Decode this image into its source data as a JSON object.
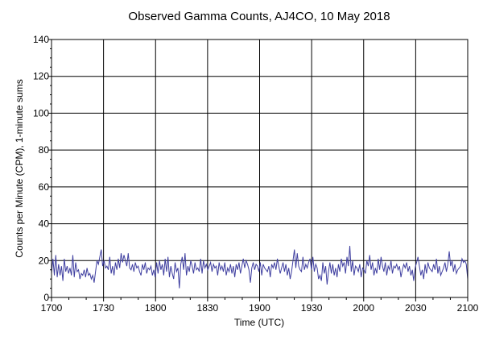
{
  "chart_data": {
    "type": "line",
    "title": "Observed Gamma Counts, AJ4CO, 10 May 2018",
    "xlabel": "Time (UTC)",
    "ylabel": "Counts per Minute (CPM), 1-minute sums",
    "x_tick_labels": [
      "1700",
      "1730",
      "1800",
      "1830",
      "1900",
      "1930",
      "2000",
      "2030",
      "2100"
    ],
    "y_ticks": [
      0,
      20,
      40,
      60,
      80,
      100,
      120,
      140
    ],
    "ylim": [
      0,
      140
    ],
    "xlim": [
      "17:00",
      "21:00"
    ],
    "grid": true,
    "series_color": "#3f3fa0",
    "series": [
      {
        "x_start": "17:00",
        "x_step_minutes": 1,
        "values": [
          13,
          21,
          12,
          23,
          11,
          18,
          12,
          17,
          9,
          21,
          14,
          17,
          13,
          16,
          12,
          23,
          11,
          19,
          14,
          15,
          10,
          13,
          12,
          15,
          11,
          16,
          12,
          13,
          10,
          12,
          8,
          14,
          20,
          18,
          22,
          26,
          17,
          20,
          16,
          17,
          15,
          22,
          13,
          17,
          12,
          19,
          15,
          21,
          16,
          24,
          19,
          23,
          20,
          17,
          24,
          16,
          15,
          18,
          14,
          19,
          16,
          17,
          14,
          12,
          18,
          15,
          19,
          13,
          16,
          15,
          17,
          12,
          15,
          11,
          19,
          13,
          20,
          15,
          18,
          12,
          21,
          14,
          22,
          11,
          17,
          13,
          10,
          19,
          14,
          16,
          5,
          18,
          22,
          15,
          24,
          12,
          17,
          14,
          20,
          17,
          13,
          19,
          15,
          16,
          14,
          21,
          13,
          20,
          16,
          18,
          15,
          17,
          19,
          14,
          18,
          16,
          17,
          12,
          19,
          15,
          17,
          14,
          19,
          12,
          16,
          14,
          18,
          13,
          17,
          11,
          18,
          15,
          19,
          13,
          17,
          21,
          16,
          20,
          18,
          15,
          8,
          16,
          19,
          15,
          18,
          17,
          14,
          19,
          12,
          18,
          16,
          15,
          14,
          17,
          11,
          18,
          16,
          19,
          15,
          21,
          17,
          13,
          16,
          19,
          14,
          18,
          12,
          16,
          10,
          14,
          20,
          26,
          16,
          24,
          17,
          15,
          14,
          22,
          15,
          18,
          16,
          19,
          21,
          15,
          22,
          14,
          18,
          16,
          10,
          12,
          9,
          19,
          13,
          17,
          7,
          14,
          19,
          13,
          18,
          12,
          16,
          11,
          18,
          14,
          21,
          17,
          19,
          13,
          22,
          17,
          28,
          14,
          20,
          12,
          17,
          16,
          14,
          18,
          11,
          16,
          15,
          13,
          20,
          17,
          23,
          15,
          19,
          12,
          16,
          13,
          21,
          15,
          22,
          17,
          14,
          19,
          12,
          17,
          15,
          20,
          13,
          17,
          16,
          18,
          15,
          17,
          11,
          15,
          18,
          16,
          19,
          14,
          17,
          12,
          15,
          9,
          16,
          19,
          22,
          17,
          12,
          15,
          10,
          18,
          13,
          19,
          16,
          15,
          14,
          18,
          15,
          21,
          13,
          17,
          12,
          14,
          16,
          19,
          14,
          18,
          25,
          17,
          20,
          14,
          18,
          13,
          15,
          16,
          17,
          21,
          19,
          20,
          18,
          10
        ]
      }
    ]
  }
}
